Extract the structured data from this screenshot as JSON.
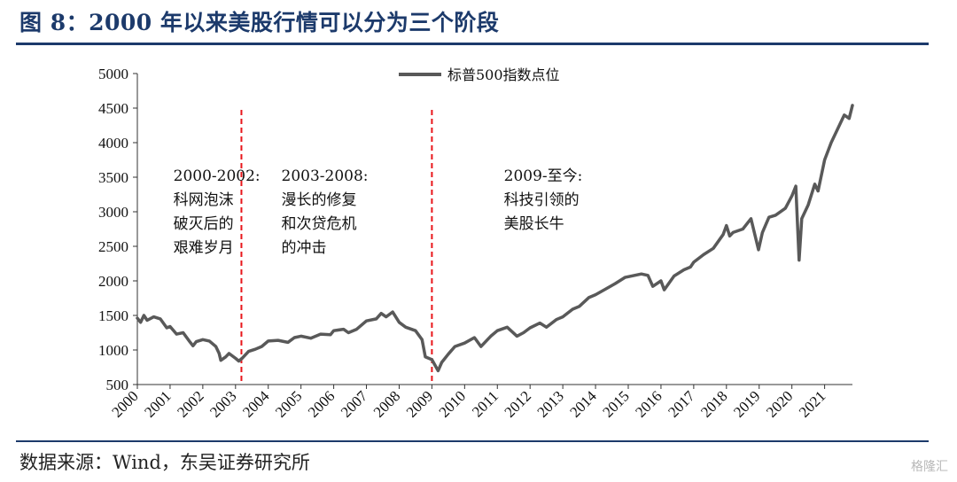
{
  "header": {
    "title": "图 8：2000 年以来美股行情可以分为三个阶段"
  },
  "footer": {
    "source": "数据来源：Wind，东吴证券研究所",
    "watermark": "格隆汇"
  },
  "colors": {
    "series": "#595959",
    "divider": "#e8161b",
    "title": "#1c3a6b"
  },
  "chart_data": {
    "type": "line",
    "title": "",
    "xlabel": "",
    "ylabel": "",
    "ylim": [
      500,
      5000
    ],
    "yticks": [
      "500",
      "1000",
      "1500",
      "2000",
      "2500",
      "3000",
      "3500",
      "4000",
      "4500",
      "5000"
    ],
    "xlim": [
      2000.0,
      2021.85
    ],
    "xticks": [
      "2000",
      "2001",
      "2002",
      "2003",
      "2004",
      "2005",
      "2006",
      "2007",
      "2008",
      "2009",
      "2010",
      "2011",
      "2012",
      "2013",
      "2014",
      "2015",
      "2016",
      "2017",
      "2018",
      "2019",
      "2020",
      "2021"
    ],
    "legend": {
      "position": "top-center",
      "entries": [
        "标普500指数点位"
      ]
    },
    "grid": false,
    "series": [
      {
        "name": "标普500指数点位",
        "x": [
          2000.0,
          2000.1,
          2000.2,
          2000.3,
          2000.5,
          2000.7,
          2000.9,
          2001.0,
          2001.2,
          2001.4,
          2001.6,
          2001.7,
          2001.8,
          2002.0,
          2002.2,
          2002.4,
          2002.5,
          2002.55,
          2002.7,
          2002.8,
          2003.0,
          2003.1,
          2003.2,
          2003.4,
          2003.6,
          2003.8,
          2004.0,
          2004.3,
          2004.6,
          2004.8,
          2005.0,
          2005.3,
          2005.6,
          2005.9,
          2006.0,
          2006.3,
          2006.45,
          2006.7,
          2007.0,
          2007.3,
          2007.45,
          2007.6,
          2007.8,
          2008.0,
          2008.2,
          2008.5,
          2008.7,
          2008.8,
          2009.0,
          2009.19,
          2009.3,
          2009.5,
          2009.7,
          2010.0,
          2010.3,
          2010.5,
          2010.8,
          2011.0,
          2011.3,
          2011.6,
          2011.8,
          2012.0,
          2012.3,
          2012.5,
          2012.8,
          2013.0,
          2013.3,
          2013.5,
          2013.8,
          2014.0,
          2014.3,
          2014.6,
          2014.9,
          2015.0,
          2015.4,
          2015.6,
          2015.75,
          2016.0,
          2016.1,
          2016.4,
          2016.7,
          2016.9,
          2017.0,
          2017.3,
          2017.6,
          2017.9,
          2018.0,
          2018.1,
          2018.2,
          2018.5,
          2018.75,
          2018.98,
          2019.1,
          2019.3,
          2019.5,
          2019.8,
          2020.0,
          2020.12,
          2020.22,
          2020.3,
          2020.5,
          2020.7,
          2020.8,
          2021.0,
          2021.2,
          2021.4,
          2021.6,
          2021.75,
          2021.85
        ],
        "values": [
          1460,
          1400,
          1500,
          1430,
          1480,
          1450,
          1320,
          1340,
          1230,
          1250,
          1120,
          1060,
          1120,
          1150,
          1130,
          1050,
          950,
          850,
          900,
          950,
          880,
          840,
          880,
          980,
          1010,
          1050,
          1130,
          1140,
          1110,
          1180,
          1200,
          1170,
          1230,
          1220,
          1280,
          1300,
          1250,
          1300,
          1420,
          1450,
          1530,
          1480,
          1550,
          1400,
          1330,
          1280,
          1150,
          900,
          860,
          700,
          820,
          940,
          1050,
          1100,
          1180,
          1050,
          1200,
          1280,
          1330,
          1200,
          1250,
          1320,
          1390,
          1330,
          1440,
          1480,
          1590,
          1630,
          1760,
          1800,
          1880,
          1960,
          2050,
          2060,
          2100,
          2080,
          1920,
          2000,
          1870,
          2070,
          2160,
          2200,
          2270,
          2380,
          2470,
          2670,
          2800,
          2650,
          2700,
          2750,
          2900,
          2450,
          2700,
          2920,
          2950,
          3050,
          3230,
          3370,
          2300,
          2900,
          3100,
          3400,
          3300,
          3750,
          4000,
          4200,
          4400,
          4350,
          4540
        ]
      }
    ],
    "dividers": [
      2003.18,
      2009.0
    ],
    "annotations": [
      {
        "x": 2001.1,
        "lines": [
          "2000-2002:",
          "科网泡沫",
          "破灭后的",
          "艰难岁月"
        ]
      },
      {
        "x": 2004.4,
        "lines": [
          "2003-2008:",
          "漫长的修复",
          "和次贷危机",
          "的冲击"
        ]
      },
      {
        "x": 2011.2,
        "lines": [
          "2009-至今:",
          "科技引领的",
          "美股长牛"
        ]
      }
    ]
  }
}
